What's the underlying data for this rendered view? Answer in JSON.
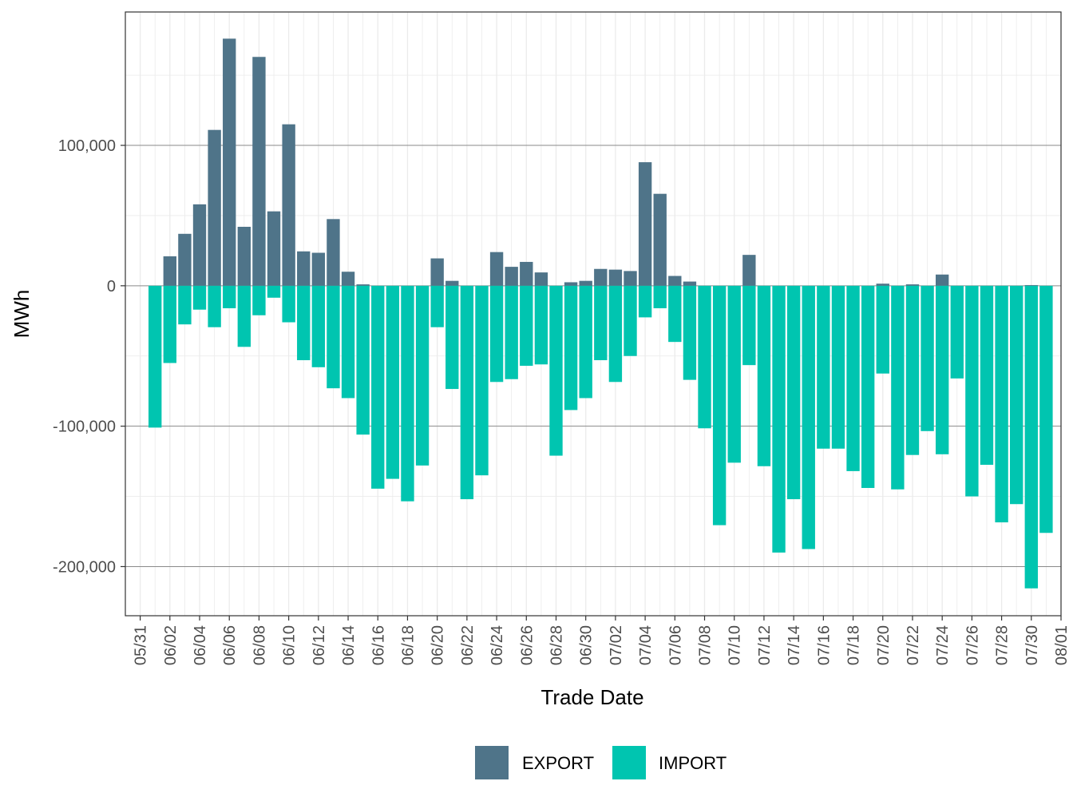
{
  "chart_data": {
    "type": "bar",
    "stacked": false,
    "xlabel": "Trade Date",
    "ylabel": "MWh",
    "ylim": [
      -235000,
      195000
    ],
    "x_range": [
      "2023-05-30",
      "2023-08-01"
    ],
    "y_ticks": [
      -200000,
      -100000,
      0,
      100000
    ],
    "y_tick_labels": [
      "-200,000",
      "-100,000",
      "0",
      "100,000"
    ],
    "x_ticks": [
      "2023-05-31",
      "2023-06-02",
      "2023-06-04",
      "2023-06-06",
      "2023-06-08",
      "2023-06-10",
      "2023-06-12",
      "2023-06-14",
      "2023-06-16",
      "2023-06-18",
      "2023-06-20",
      "2023-06-22",
      "2023-06-24",
      "2023-06-26",
      "2023-06-28",
      "2023-06-30",
      "2023-07-02",
      "2023-07-04",
      "2023-07-06",
      "2023-07-08",
      "2023-07-10",
      "2023-07-12",
      "2023-07-14",
      "2023-07-16",
      "2023-07-18",
      "2023-07-20",
      "2023-07-22",
      "2023-07-24",
      "2023-07-26",
      "2023-07-28",
      "2023-07-30",
      "2023-08-01"
    ],
    "x_tick_labels": [
      "05/31",
      "06/02",
      "06/04",
      "06/06",
      "06/08",
      "06/10",
      "06/12",
      "06/14",
      "06/16",
      "06/18",
      "06/20",
      "06/22",
      "06/24",
      "06/26",
      "06/28",
      "06/30",
      "07/02",
      "07/04",
      "07/06",
      "07/08",
      "07/10",
      "07/12",
      "07/14",
      "07/16",
      "07/18",
      "07/20",
      "07/22",
      "07/24",
      "07/26",
      "07/28",
      "07/30",
      "08/01"
    ],
    "grid": true,
    "legend_position": "bottom",
    "x": [
      "2023-06-01",
      "2023-06-02",
      "2023-06-03",
      "2023-06-04",
      "2023-06-05",
      "2023-06-06",
      "2023-06-07",
      "2023-06-08",
      "2023-06-09",
      "2023-06-10",
      "2023-06-11",
      "2023-06-12",
      "2023-06-13",
      "2023-06-14",
      "2023-06-15",
      "2023-06-16",
      "2023-06-17",
      "2023-06-18",
      "2023-06-19",
      "2023-06-20",
      "2023-06-21",
      "2023-06-22",
      "2023-06-23",
      "2023-06-24",
      "2023-06-25",
      "2023-06-26",
      "2023-06-27",
      "2023-06-28",
      "2023-06-29",
      "2023-06-30",
      "2023-07-01",
      "2023-07-02",
      "2023-07-03",
      "2023-07-04",
      "2023-07-05",
      "2023-07-06",
      "2023-07-07",
      "2023-07-08",
      "2023-07-09",
      "2023-07-10",
      "2023-07-11",
      "2023-07-12",
      "2023-07-13",
      "2023-07-14",
      "2023-07-15",
      "2023-07-16",
      "2023-07-17",
      "2023-07-18",
      "2023-07-19",
      "2023-07-20",
      "2023-07-21",
      "2023-07-22",
      "2023-07-23",
      "2023-07-24",
      "2023-07-25",
      "2023-07-26",
      "2023-07-27",
      "2023-07-28",
      "2023-07-29",
      "2023-07-30",
      "2023-07-31"
    ],
    "series": [
      {
        "name": "EXPORT",
        "color": "#4f7489",
        "values": [
          0,
          21000,
          37000,
          58000,
          111000,
          176000,
          42000,
          163000,
          53000,
          115000,
          24500,
          23500,
          47500,
          10000,
          1000,
          0,
          0,
          0,
          0,
          19500,
          3500,
          0,
          0,
          24000,
          13500,
          17000,
          9500,
          0,
          2500,
          3500,
          12000,
          11500,
          10500,
          88000,
          65500,
          7000,
          3000,
          0,
          0,
          0,
          22000,
          0,
          0,
          0,
          0,
          0,
          0,
          0,
          0,
          1500,
          0,
          1000,
          0,
          8000,
          0,
          0,
          0,
          0,
          0,
          500,
          0
        ]
      },
      {
        "name": "IMPORT",
        "color": "#00c5b0",
        "values": [
          -101000,
          -55000,
          -27500,
          -17000,
          -29500,
          -16000,
          -43500,
          -21000,
          -8500,
          -26000,
          -53000,
          -58000,
          -73000,
          -80000,
          -106000,
          -144500,
          -137500,
          -153500,
          -128000,
          -29500,
          -73500,
          -152000,
          -135000,
          -68500,
          -66500,
          -57000,
          -56000,
          -121000,
          -88500,
          -80000,
          -53000,
          -68500,
          -50000,
          -22500,
          -16000,
          -40000,
          -67000,
          -101500,
          -170500,
          -126000,
          -56500,
          -128500,
          -190000,
          -152000,
          -187500,
          -116000,
          -116000,
          -132000,
          -144000,
          -62500,
          -145000,
          -120500,
          -103500,
          -120000,
          -66000,
          -150000,
          -127500,
          -168500,
          -155500,
          -215500,
          -176000
        ]
      }
    ]
  }
}
